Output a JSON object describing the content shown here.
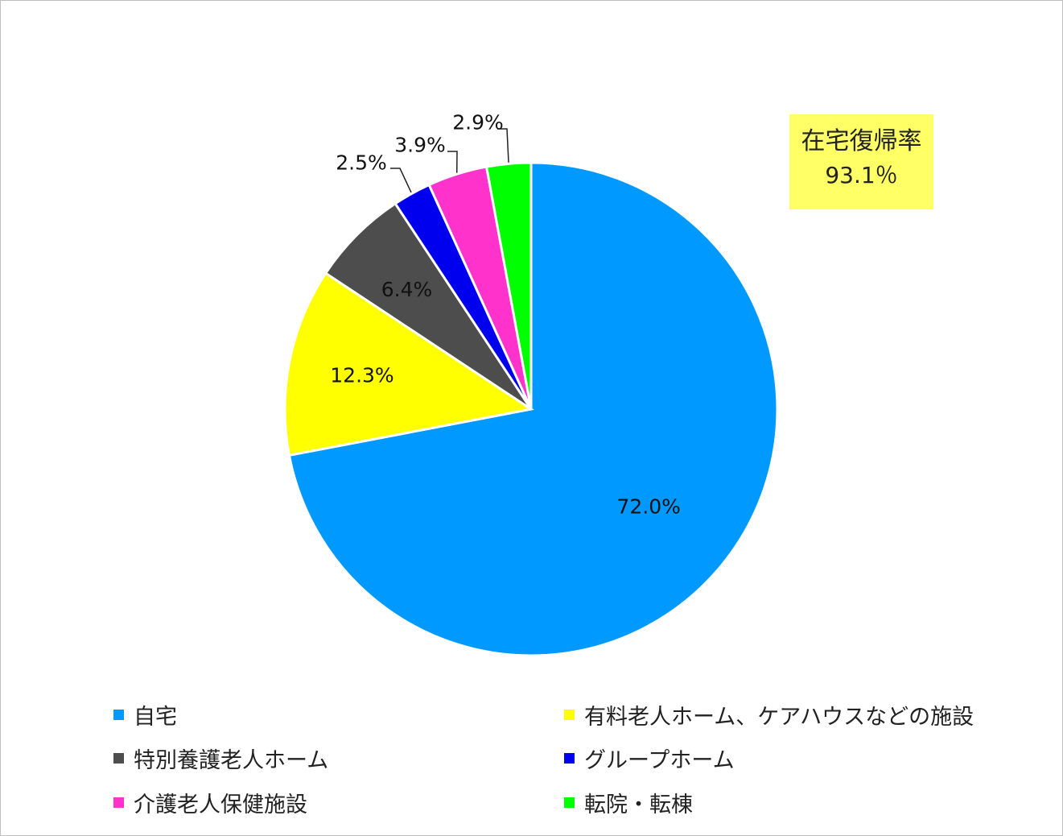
{
  "chart_data": {
    "type": "pie",
    "start_angle": "12 o'clock",
    "direction": "clockwise",
    "categories": [
      "自宅",
      "有料老人ホーム、ケアハウスなどの施設",
      "特別養護老人ホーム",
      "グループホーム",
      "介護老人保健施設",
      "転院・転棟"
    ],
    "values": [
      72.0,
      12.3,
      6.4,
      2.5,
      3.9,
      2.9
    ],
    "labels": [
      "72.0%",
      "12.3%",
      "6.4%",
      "2.5%",
      "3.9%",
      "2.9%"
    ],
    "colors": [
      "#0099ff",
      "#ffff00",
      "#4d4d4d",
      "#0000ee",
      "#ff33cc",
      "#00ff00"
    ],
    "legend_placement": "bottom"
  },
  "annotation": {
    "title": "在宅復帰率",
    "value": "93.1％"
  }
}
